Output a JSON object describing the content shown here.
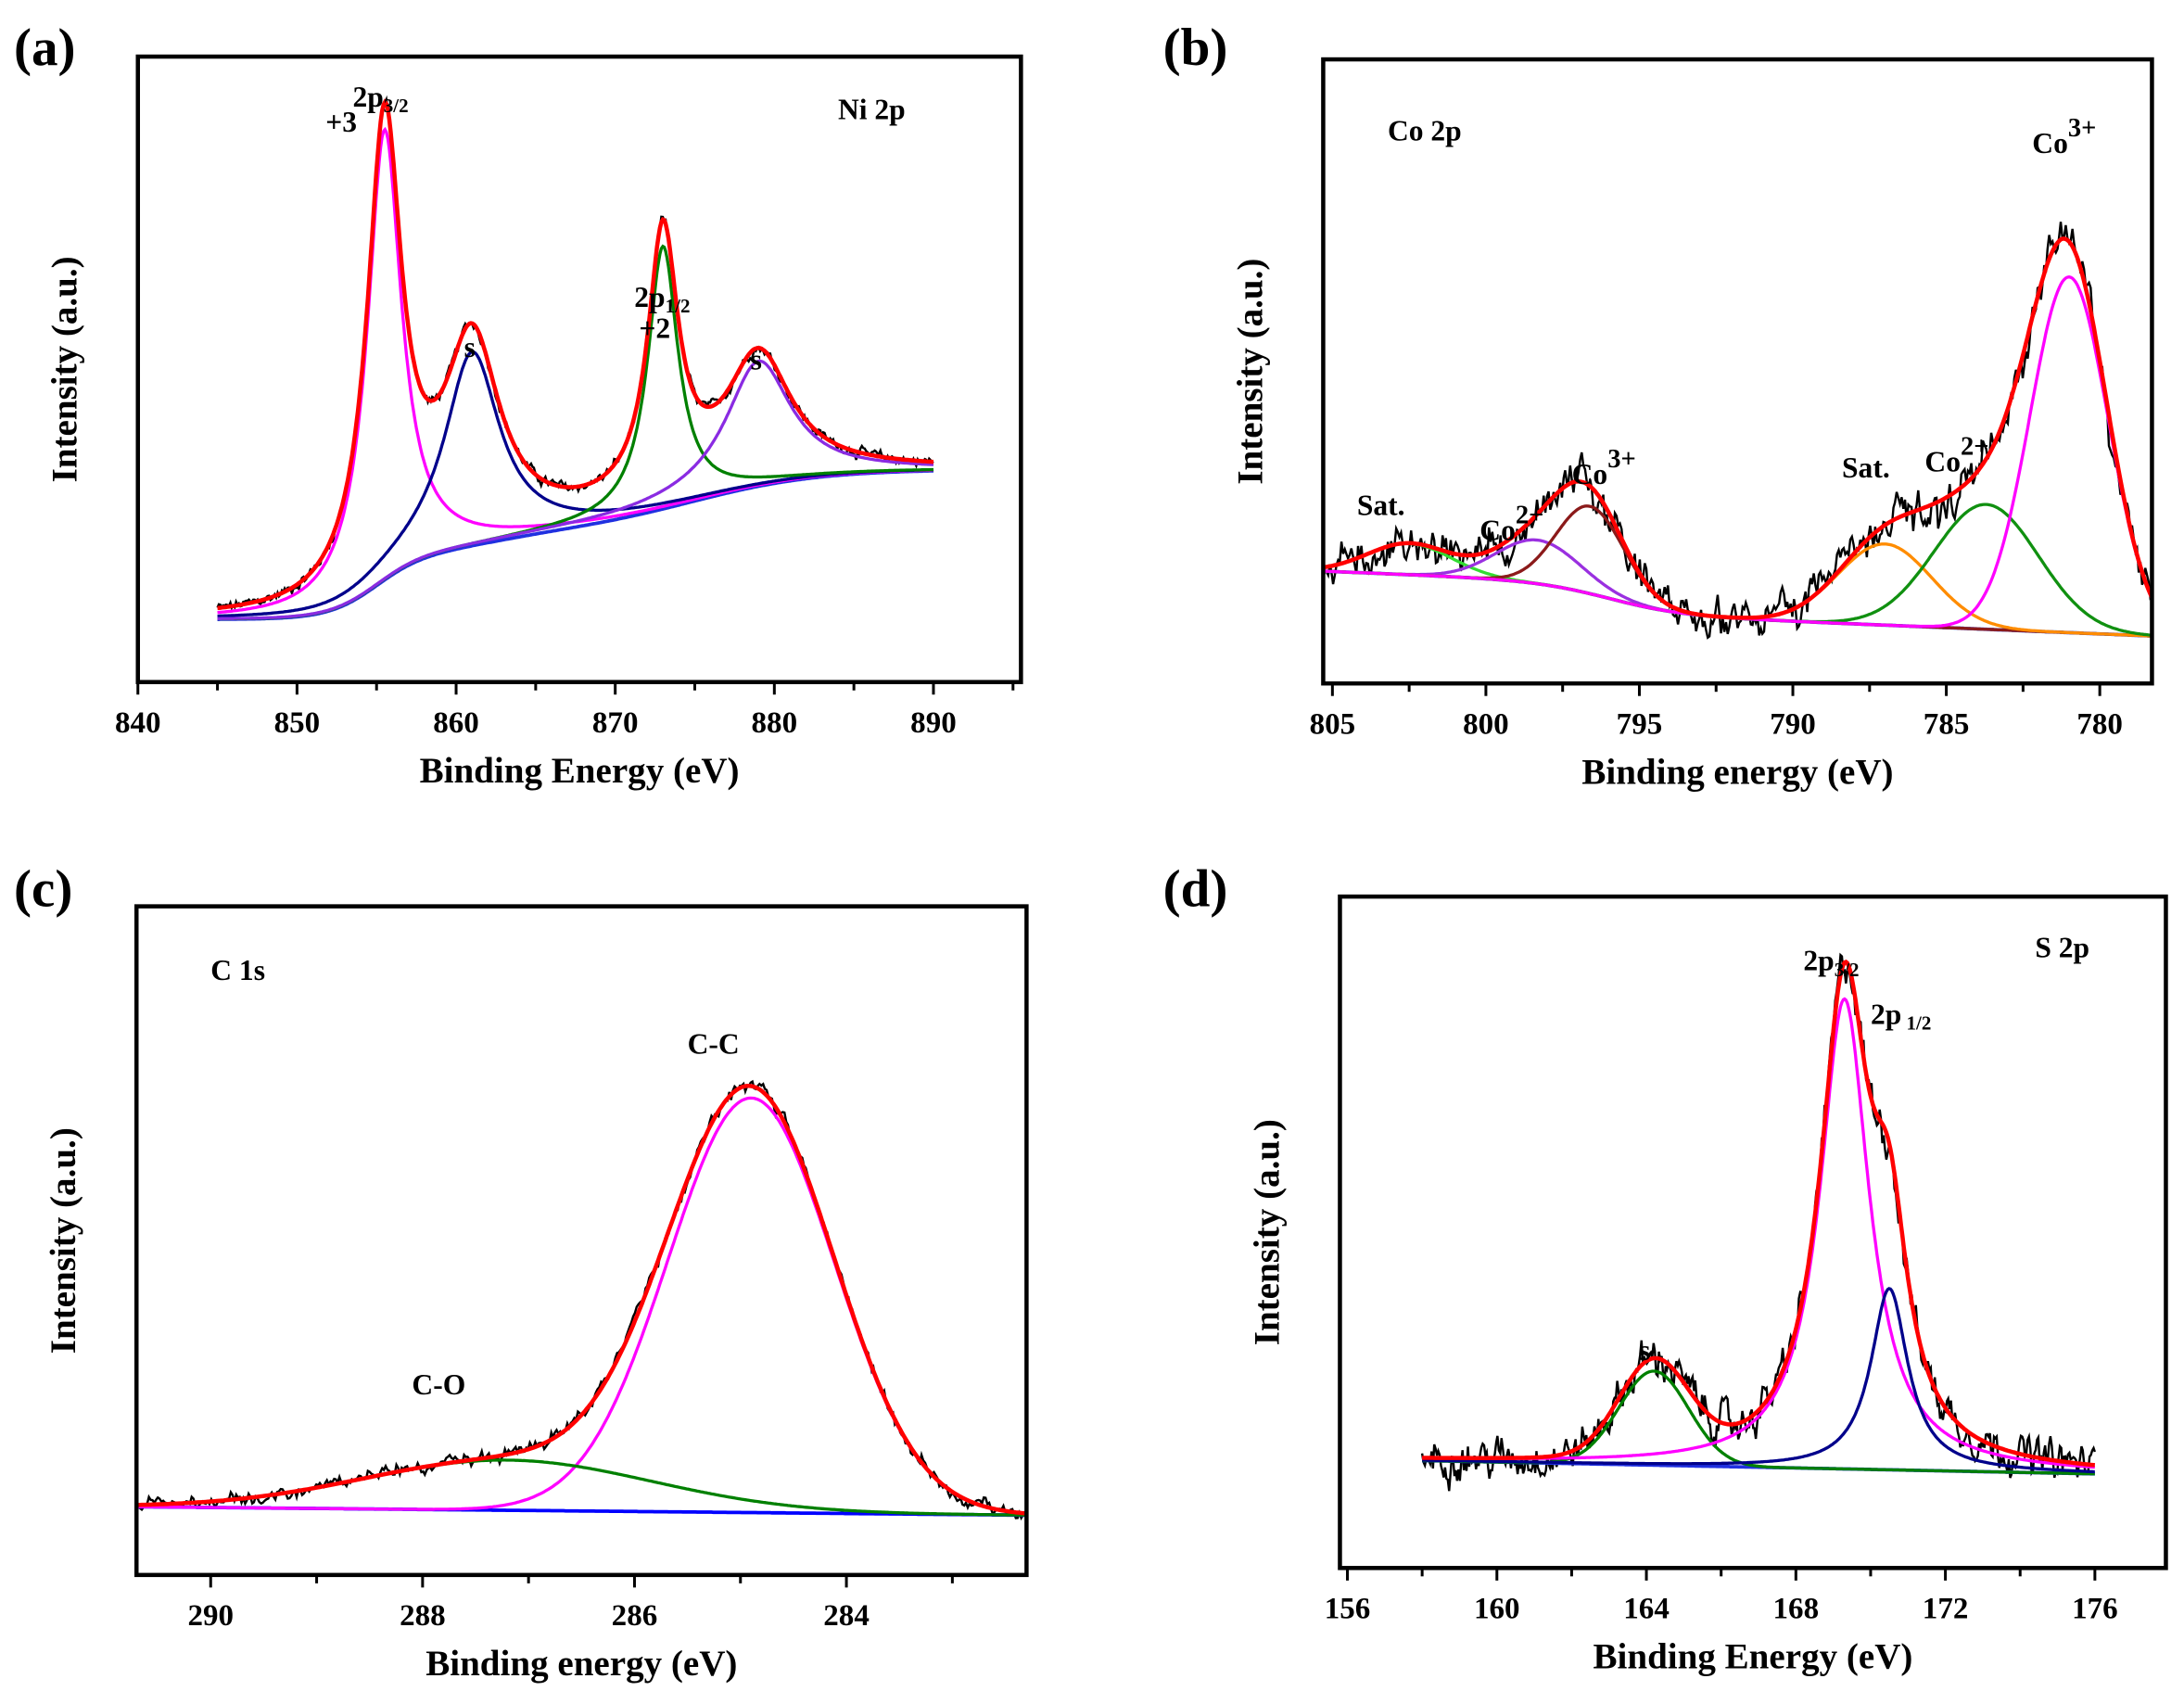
{
  "chart_data": [
    {
      "type": "line",
      "panel_label": "(a)",
      "title": "Ni 2p",
      "xlabel": "Binding Energy (eV)",
      "ylabel": "Intensity (a.u.)",
      "xlim": [
        840,
        895.5
      ],
      "ylim": [
        0,
        1
      ],
      "x_reversed": false,
      "xticks": [
        840,
        850,
        860,
        870,
        880,
        890
      ],
      "minor_step": 5,
      "data_range": [
        845,
        890
      ],
      "noise": 0.006,
      "baseline": {
        "start": 0.1,
        "slope": 0,
        "steps": [
          {
            "x": 855,
            "h": 0.1,
            "w": 1.5
          },
          {
            "x": 862,
            "h": 0.04,
            "w": 3
          },
          {
            "x": 875,
            "h": 0.1,
            "w": 4
          }
        ]
      },
      "components": [
        {
          "name": "Ni3+ 2p3/2",
          "center": 855.5,
          "height": 0.72,
          "fwhm": 2.6,
          "shape": "lorentz",
          "color": "#ff00ff"
        },
        {
          "name": "satellite 1",
          "center": 861,
          "height": 0.31,
          "fwhm": 4.2,
          "shape": "lorentz",
          "color": "#00008b"
        },
        {
          "name": "Ni2+ 2p1/2",
          "center": 873,
          "height": 0.42,
          "fwhm": 2.3,
          "shape": "lorentz",
          "color": "#008000"
        },
        {
          "name": "satellite 2",
          "center": 879,
          "height": 0.2,
          "fwhm": 5,
          "shape": "lorentz",
          "color": "#8a2be2"
        }
      ],
      "fit_color": "#ff0000",
      "raw_color": "#000000",
      "annotations": [
        {
          "text": "2p",
          "sub": "3/2",
          "x": 853.5,
          "y": 0.92
        },
        {
          "text": "+3",
          "x": 851.8,
          "y": 0.88
        },
        {
          "text": "s",
          "x": 860.5,
          "y": 0.52
        },
        {
          "text": "2p",
          "sub": "1/2",
          "x": 871.2,
          "y": 0.6
        },
        {
          "text": "+2",
          "x": 871.5,
          "y": 0.55
        },
        {
          "text": "s",
          "x": 878.5,
          "y": 0.5
        }
      ],
      "title_pos": {
        "x": 884,
        "y": 0.9
      }
    },
    {
      "type": "line",
      "panel_label": "(b)",
      "title": "Co 2p",
      "xlabel": "Binding energy (eV)",
      "ylabel": "Intensity (a.u.)",
      "xlim": [
        805.3,
        778.3
      ],
      "ylim": [
        0,
        1
      ],
      "x_reversed": true,
      "xticks": [
        805,
        800,
        795,
        790,
        785,
        780
      ],
      "minor_step": 2.5,
      "data_range": [
        805.3,
        778.3
      ],
      "noise": 0.022,
      "baseline": {
        "start": 0.18,
        "slope": -0.002,
        "steps": [
          {
            "x": 796,
            "h": -0.05,
            "w": -1.2
          }
        ]
      },
      "components": [
        {
          "name": "Sat.",
          "center": 802.5,
          "height": 0.05,
          "fwhm": 3.2,
          "shape": "gauss",
          "color": "#33dd33"
        },
        {
          "name": "Co2+",
          "center": 798.3,
          "height": 0.07,
          "fwhm": 3.2,
          "shape": "gauss",
          "color": "#9a30e0"
        },
        {
          "name": "Co3+",
          "center": 796.6,
          "height": 0.14,
          "fwhm": 2.6,
          "shape": "gauss",
          "color": "#8b1a1a"
        },
        {
          "name": "Sat.",
          "center": 787,
          "height": 0.13,
          "fwhm": 3.6,
          "shape": "gauss",
          "color": "#ff8c00"
        },
        {
          "name": "Co2+",
          "center": 783.7,
          "height": 0.2,
          "fwhm": 4,
          "shape": "gauss",
          "color": "#109010"
        },
        {
          "name": "Co3+",
          "center": 781,
          "height": 0.57,
          "fwhm": 3,
          "shape": "gauss",
          "color": "#ff00ff"
        }
      ],
      "fit_color": "#ff0000",
      "raw_color": "#000000",
      "annotations": [
        {
          "text": "Sat.",
          "x": 804.2,
          "y": 0.27
        },
        {
          "text": "Co",
          "sup": "2+",
          "x": 800.2,
          "y": 0.23
        },
        {
          "text": "Co",
          "sup": "3+",
          "x": 797.2,
          "y": 0.32
        },
        {
          "text": "Sat.",
          "x": 788.4,
          "y": 0.33
        },
        {
          "text": "Co",
          "sup": "2+",
          "x": 785.7,
          "y": 0.34
        },
        {
          "text": "Co",
          "sup": "3+",
          "x": 782.2,
          "y": 0.85
        }
      ],
      "title_pos": {
        "x": 803.2,
        "y": 0.87
      }
    },
    {
      "type": "line",
      "panel_label": "(c)",
      "title": "C 1s",
      "xlabel": "Binding energy (eV)",
      "ylabel": "Intensity (a.u.)",
      "xlim": [
        290.7,
        282.3
      ],
      "ylim": [
        0,
        1
      ],
      "x_reversed": true,
      "xticks": [
        290,
        288,
        286,
        284
      ],
      "minor_step": 1,
      "data_range": [
        290.7,
        282.3
      ],
      "noise": 0.007,
      "baseline": {
        "start": 0.102,
        "slope": -0.0015,
        "steps": []
      },
      "components": [
        {
          "name": "C-C",
          "center": 284.9,
          "height": 0.62,
          "fwhm": 1.85,
          "shape": "gauss",
          "color": "#ff00ff"
        },
        {
          "name": "C-O",
          "center": 287.2,
          "height": 0.075,
          "fwhm": 3.2,
          "shape": "gauss",
          "color": "#008000"
        }
      ],
      "fit_color": "#ff0000",
      "raw_color": "#000000",
      "baseline_color": "#0000ff",
      "annotations": [
        {
          "text": "C-C",
          "x": 285.5,
          "y": 0.78
        },
        {
          "text": "C-O",
          "x": 288.1,
          "y": 0.27
        }
      ],
      "title_pos": {
        "x": 290,
        "y": 0.89
      }
    },
    {
      "type": "line",
      "panel_label": "(d)",
      "title": "S 2p",
      "xlabel": "Binding Energy (eV)",
      "ylabel": "Intensity (a.u.)",
      "xlim": [
        155.8,
        177.9
      ],
      "ylim": [
        0,
        1
      ],
      "x_reversed": false,
      "xticks": [
        156,
        160,
        164,
        168,
        172,
        176
      ],
      "minor_step": 2,
      "data_range": [
        158,
        176
      ],
      "noise": 0.02,
      "baseline": {
        "start": 0.16,
        "slope": -0.0011,
        "steps": []
      },
      "components": [
        {
          "name": "s",
          "center": 164.2,
          "height": 0.14,
          "fwhm": 2.2,
          "shape": "gauss",
          "color": "#008000"
        },
        {
          "name": "2p3/2",
          "center": 169.3,
          "height": 0.7,
          "fwhm": 1.6,
          "shape": "lorentz",
          "color": "#ff00ff"
        },
        {
          "name": "2p1/2",
          "center": 170.5,
          "height": 0.27,
          "fwhm": 1.2,
          "shape": "lorentz",
          "color": "#00008b"
        }
      ],
      "fit_color": "#ff0000",
      "raw_color": "#000000",
      "annotations": [
        {
          "text": "s",
          "x": 163.8,
          "y": 0.31
        },
        {
          "text": "2p",
          "sub": "3/2",
          "x": 168.2,
          "y": 0.89
        },
        {
          "text": "2p",
          "sub": " 1/2",
          "x": 170,
          "y": 0.81
        }
      ],
      "title_pos": {
        "x": 174.4,
        "y": 0.91
      }
    }
  ]
}
